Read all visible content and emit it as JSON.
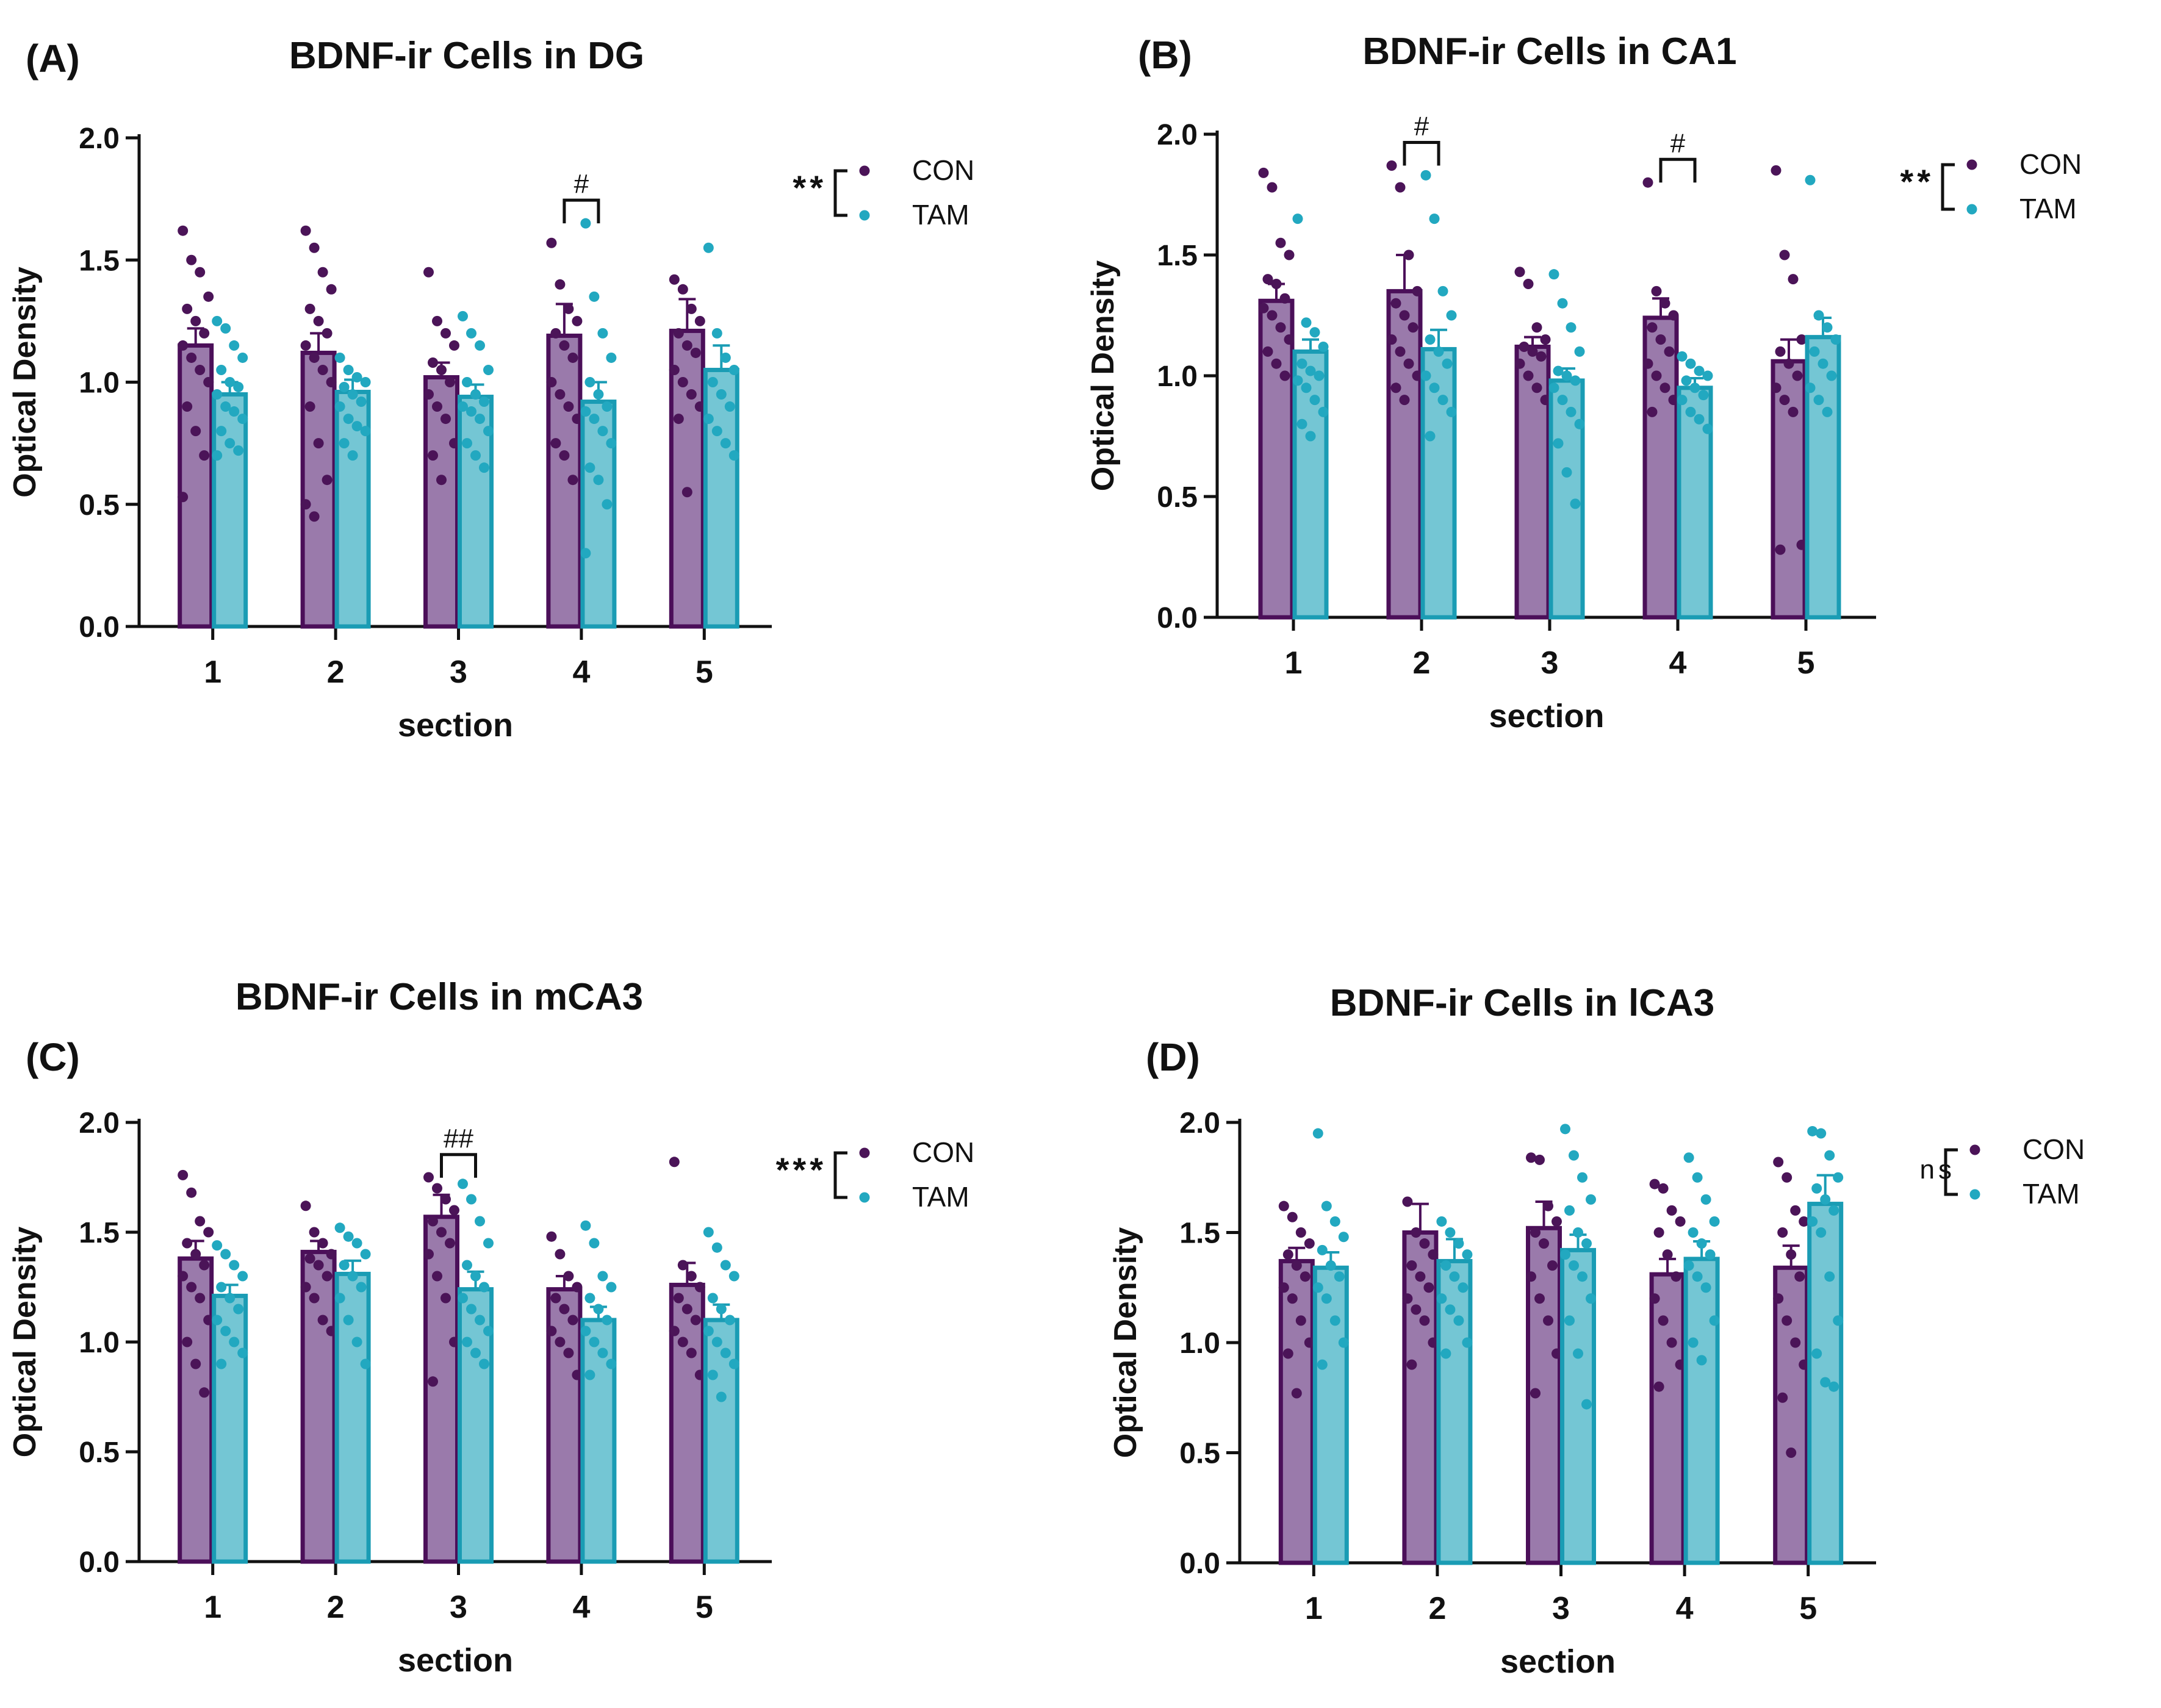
{
  "colors": {
    "con_fill": "#9a7aab",
    "con_edge": "#4b0f59",
    "con_dot": "#4b1458",
    "tam_fill": "#74c6d4",
    "tam_edge": "#1a9cb4",
    "tam_dot": "#22a8c0",
    "axis": "#111111"
  },
  "chart_data": [
    {
      "type": "bar",
      "panel_label": "(A)",
      "title": "BDNF-ir Cells in DG",
      "xlabel": "section",
      "ylabel": "Optical Density",
      "categories": [
        "1",
        "2",
        "3",
        "4",
        "5"
      ],
      "ylim": [
        0,
        2.0
      ],
      "yticks": [
        "0.0",
        "0.5",
        "1.0",
        "1.5",
        "2.0"
      ],
      "series": [
        {
          "name": "CON",
          "values": [
            1.15,
            1.12,
            1.02,
            1.19,
            1.21
          ],
          "sem": [
            0.07,
            0.08,
            0.06,
            0.13,
            0.13
          ],
          "points": [
            [
              1.62,
              1.5,
              1.45,
              1.35,
              1.3,
              1.25,
              1.2,
              1.15,
              1.1,
              1.05,
              1.0,
              0.9,
              0.8,
              0.7,
              0.53
            ],
            [
              1.62,
              1.55,
              1.45,
              1.38,
              1.3,
              1.25,
              1.2,
              1.15,
              1.1,
              1.05,
              1.0,
              0.9,
              0.75,
              0.6,
              0.5,
              0.45
            ],
            [
              1.45,
              1.25,
              1.2,
              1.15,
              1.08,
              1.05,
              1.0,
              0.95,
              0.9,
              0.85,
              0.75,
              0.7,
              0.6
            ],
            [
              1.57,
              1.4,
              1.3,
              1.25,
              1.2,
              1.15,
              1.1,
              1.0,
              0.95,
              0.9,
              0.85,
              0.75,
              0.7,
              0.6
            ],
            [
              1.42,
              1.38,
              1.3,
              1.25,
              1.2,
              1.15,
              1.12,
              1.05,
              1.0,
              0.95,
              0.9,
              0.85,
              0.55
            ]
          ]
        },
        {
          "name": "TAM",
          "values": [
            0.95,
            0.96,
            0.94,
            0.92,
            1.05
          ],
          "sem": [
            0.05,
            0.05,
            0.05,
            0.08,
            0.1
          ],
          "points": [
            [
              1.25,
              1.22,
              1.15,
              1.1,
              1.05,
              1.0,
              0.98,
              0.95,
              0.9,
              0.88,
              0.85,
              0.8,
              0.75,
              0.72,
              0.7
            ],
            [
              1.1,
              1.05,
              1.02,
              1.0,
              0.98,
              0.95,
              0.92,
              0.9,
              0.85,
              0.82,
              0.8,
              0.75,
              0.7
            ],
            [
              1.27,
              1.2,
              1.15,
              1.05,
              1.0,
              0.95,
              0.92,
              0.9,
              0.88,
              0.85,
              0.8,
              0.75,
              0.7,
              0.65
            ],
            [
              1.65,
              1.35,
              1.2,
              1.1,
              1.0,
              0.95,
              0.9,
              0.88,
              0.85,
              0.8,
              0.75,
              0.65,
              0.6,
              0.5,
              0.3
            ],
            [
              1.55,
              1.2,
              1.1,
              1.05,
              1.0,
              0.95,
              0.9,
              0.85,
              0.8,
              0.75,
              0.7
            ]
          ]
        }
      ],
      "comparisons": [
        {
          "section": "4",
          "label": "#"
        }
      ],
      "main_effect": "**",
      "legend": [
        "CON",
        "TAM"
      ]
    },
    {
      "type": "bar",
      "panel_label": "(B)",
      "title": "BDNF-ir Cells in CA1",
      "xlabel": "section",
      "ylabel": "Optical Density",
      "categories": [
        "1",
        "2",
        "3",
        "4",
        "5"
      ],
      "ylim": [
        0,
        2.0
      ],
      "yticks": [
        "0.0",
        "0.5",
        "1.0",
        "1.5",
        "2.0"
      ],
      "series": [
        {
          "name": "CON",
          "values": [
            1.31,
            1.35,
            1.12,
            1.24,
            1.06
          ],
          "sem": [
            0.07,
            0.15,
            0.04,
            0.08,
            0.09
          ],
          "points": [
            [
              1.84,
              1.78,
              1.55,
              1.5,
              1.4,
              1.38,
              1.32,
              1.28,
              1.25,
              1.2,
              1.15,
              1.1,
              1.05,
              1.0
            ],
            [
              1.87,
              1.78,
              1.5,
              1.35,
              1.3,
              1.25,
              1.2,
              1.15,
              1.1,
              1.05,
              1.0,
              0.95,
              0.9
            ],
            [
              1.43,
              1.38,
              1.2,
              1.15,
              1.12,
              1.1,
              1.08,
              1.05,
              1.0,
              0.95,
              0.9
            ],
            [
              1.8,
              1.35,
              1.3,
              1.25,
              1.2,
              1.15,
              1.1,
              1.05,
              1.0,
              0.95,
              0.9,
              0.85
            ],
            [
              1.85,
              1.5,
              1.4,
              1.15,
              1.1,
              1.05,
              1.0,
              0.95,
              0.9,
              0.85,
              0.3,
              0.28
            ]
          ]
        },
        {
          "name": "TAM",
          "values": [
            1.1,
            1.11,
            0.98,
            0.95,
            1.16
          ],
          "sem": [
            0.05,
            0.08,
            0.05,
            0.04,
            0.08
          ],
          "points": [
            [
              1.65,
              1.22,
              1.18,
              1.12,
              1.05,
              1.02,
              1.0,
              0.98,
              0.95,
              0.9,
              0.85,
              0.8,
              0.75
            ],
            [
              1.83,
              1.65,
              1.35,
              1.25,
              1.15,
              1.1,
              1.05,
              1.0,
              0.95,
              0.9,
              0.85,
              0.75
            ],
            [
              1.42,
              1.3,
              1.2,
              1.1,
              1.02,
              1.0,
              0.98,
              0.95,
              0.9,
              0.85,
              0.8,
              0.72,
              0.6,
              0.47
            ],
            [
              1.08,
              1.05,
              1.02,
              1.0,
              0.98,
              0.95,
              0.92,
              0.9,
              0.85,
              0.82,
              0.78
            ],
            [
              1.81,
              1.25,
              1.2,
              1.15,
              1.1,
              1.05,
              1.0,
              0.95,
              0.9,
              0.85
            ]
          ]
        }
      ],
      "comparisons": [
        {
          "section": "2",
          "label": "#"
        },
        {
          "section": "4",
          "label": "#"
        }
      ],
      "main_effect": "**",
      "legend": [
        "CON",
        "TAM"
      ]
    },
    {
      "type": "bar",
      "panel_label": "(C)",
      "title": "BDNF-ir Cells in mCA3",
      "xlabel": "section",
      "ylabel": "Optical Density",
      "categories": [
        "1",
        "2",
        "3",
        "4",
        "5"
      ],
      "ylim": [
        0,
        2.0
      ],
      "yticks": [
        "0.0",
        "0.5",
        "1.0",
        "1.5",
        "2.0"
      ],
      "series": [
        {
          "name": "CON",
          "values": [
            1.38,
            1.41,
            1.57,
            1.24,
            1.26
          ],
          "sem": [
            0.08,
            0.05,
            0.1,
            0.06,
            0.1
          ],
          "points": [
            [
              1.76,
              1.68,
              1.55,
              1.5,
              1.45,
              1.4,
              1.35,
              1.3,
              1.25,
              1.2,
              1.1,
              1.0,
              0.9,
              0.77
            ],
            [
              1.62,
              1.5,
              1.45,
              1.4,
              1.38,
              1.35,
              1.3,
              1.25,
              1.2,
              1.1,
              1.05
            ],
            [
              1.75,
              1.7,
              1.65,
              1.6,
              1.55,
              1.5,
              1.45,
              1.4,
              1.3,
              1.2,
              1.0,
              0.82
            ],
            [
              1.48,
              1.4,
              1.3,
              1.25,
              1.2,
              1.15,
              1.1,
              1.05,
              1.0,
              0.95,
              0.85
            ],
            [
              1.82,
              1.35,
              1.3,
              1.25,
              1.2,
              1.15,
              1.1,
              1.05,
              1.0,
              0.95,
              0.85
            ]
          ]
        },
        {
          "name": "TAM",
          "values": [
            1.21,
            1.31,
            1.24,
            1.1,
            1.1
          ],
          "sem": [
            0.05,
            0.06,
            0.08,
            0.06,
            0.07
          ],
          "points": [
            [
              1.44,
              1.4,
              1.35,
              1.3,
              1.25,
              1.2,
              1.15,
              1.1,
              1.05,
              1.0,
              0.95,
              0.9
            ],
            [
              1.52,
              1.48,
              1.45,
              1.4,
              1.35,
              1.3,
              1.25,
              1.2,
              1.1,
              1.0,
              0.9
            ],
            [
              1.72,
              1.65,
              1.55,
              1.45,
              1.35,
              1.3,
              1.25,
              1.2,
              1.15,
              1.1,
              1.05,
              1.0,
              0.95,
              0.9
            ],
            [
              1.53,
              1.45,
              1.3,
              1.25,
              1.2,
              1.15,
              1.1,
              1.05,
              1.0,
              0.95,
              0.9,
              0.85
            ],
            [
              1.5,
              1.43,
              1.35,
              1.3,
              1.2,
              1.15,
              1.1,
              1.05,
              1.0,
              0.95,
              0.9,
              0.85,
              0.75
            ]
          ]
        }
      ],
      "comparisons": [
        {
          "section": "3",
          "label": "##"
        }
      ],
      "main_effect": "***",
      "legend": [
        "CON",
        "TAM"
      ]
    },
    {
      "type": "bar",
      "panel_label": "(D)",
      "title": "BDNF-ir Cells in lCA3",
      "xlabel": "section",
      "ylabel": "Optical Density",
      "categories": [
        "1",
        "2",
        "3",
        "4",
        "5"
      ],
      "ylim": [
        0,
        2.0
      ],
      "yticks": [
        "0.0",
        "0.5",
        "1.0",
        "1.5",
        "2.0"
      ],
      "series": [
        {
          "name": "CON",
          "values": [
            1.37,
            1.5,
            1.52,
            1.31,
            1.34
          ],
          "sem": [
            0.06,
            0.13,
            0.12,
            0.07,
            0.1
          ],
          "points": [
            [
              1.62,
              1.57,
              1.5,
              1.45,
              1.4,
              1.35,
              1.3,
              1.25,
              1.2,
              1.1,
              1.0,
              0.95,
              0.77
            ],
            [
              1.64,
              1.5,
              1.45,
              1.4,
              1.35,
              1.3,
              1.25,
              1.2,
              1.15,
              1.1,
              1.0,
              0.9
            ],
            [
              1.84,
              1.83,
              1.62,
              1.55,
              1.5,
              1.45,
              1.35,
              1.3,
              1.2,
              1.1,
              0.95,
              0.77
            ],
            [
              1.72,
              1.7,
              1.6,
              1.55,
              1.5,
              1.4,
              1.3,
              1.2,
              1.1,
              1.0,
              0.9,
              0.8
            ],
            [
              1.82,
              1.75,
              1.6,
              1.55,
              1.5,
              1.4,
              1.3,
              1.2,
              1.1,
              1.0,
              0.9,
              0.75,
              0.5
            ]
          ]
        },
        {
          "name": "TAM",
          "values": [
            1.34,
            1.37,
            1.42,
            1.38,
            1.63
          ],
          "sem": [
            0.07,
            0.1,
            0.07,
            0.08,
            0.13
          ],
          "points": [
            [
              1.95,
              1.62,
              1.55,
              1.48,
              1.42,
              1.35,
              1.3,
              1.25,
              1.2,
              1.1,
              1.0,
              0.9
            ],
            [
              1.55,
              1.5,
              1.45,
              1.4,
              1.35,
              1.3,
              1.25,
              1.2,
              1.15,
              1.1,
              1.0,
              0.95
            ],
            [
              1.97,
              1.85,
              1.75,
              1.65,
              1.6,
              1.5,
              1.45,
              1.4,
              1.35,
              1.3,
              1.2,
              1.1,
              0.95,
              0.72
            ],
            [
              1.84,
              1.75,
              1.65,
              1.55,
              1.5,
              1.45,
              1.4,
              1.35,
              1.3,
              1.25,
              1.1,
              1.0,
              0.92
            ],
            [
              1.96,
              1.95,
              1.85,
              1.75,
              1.7,
              1.65,
              1.6,
              1.55,
              1.5,
              1.3,
              1.1,
              0.95,
              0.82,
              0.8
            ]
          ]
        }
      ],
      "comparisons": [],
      "main_effect": "ns",
      "legend": [
        "CON",
        "TAM"
      ]
    }
  ]
}
